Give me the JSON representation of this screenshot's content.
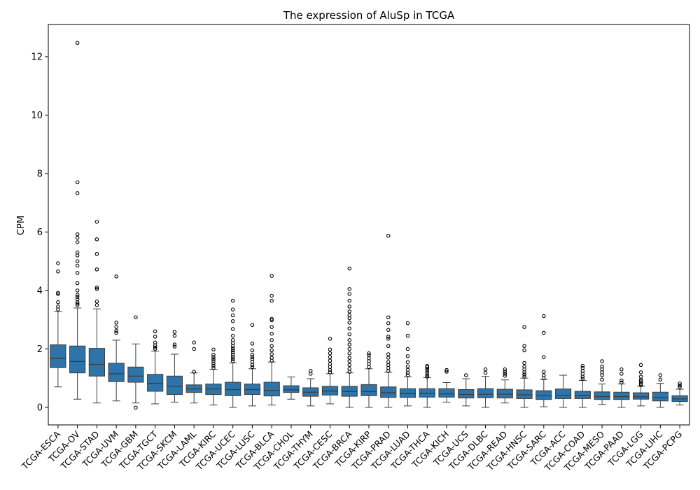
{
  "chart_data": {
    "type": "box",
    "title": "The expression of AluSp in TCGA",
    "xlabel": "",
    "ylabel": "CPM",
    "ylim": [
      -0.6,
      13.1
    ],
    "yticks": [
      0,
      2,
      4,
      6,
      8,
      10,
      12
    ],
    "grid": false,
    "box_color": "#2e74a9",
    "categories": [
      "TCGA-ESCA",
      "TCGA-OV",
      "TCGA-STAD",
      "TCGA-UVM",
      "TCGA-GBM",
      "TCGA-TGCT",
      "TCGA-SKCM",
      "TCGA-LAML",
      "TCGA-KIRC",
      "TCGA-UCEC",
      "TCGA-LUSC",
      "TCGA-BLCA",
      "TCGA-CHOL",
      "TCGA-THYM",
      "TCGA-CESC",
      "TCGA-BRCA",
      "TCGA-KIRP",
      "TCGA-PRAD",
      "TCGA-LUAD",
      "TCGA-THCA",
      "TCGA-KICH",
      "TCGA-UCS",
      "TCGA-DLBC",
      "TCGA-READ",
      "TCGA-HNSC",
      "TCGA-SARC",
      "TCGA-ACC",
      "TCGA-COAD",
      "TCGA-MESO",
      "TCGA-PAAD",
      "TCGA-LGG",
      "TCGA-LIHC",
      "TCGA-PCPG"
    ],
    "boxes": [
      {
        "whislo": 0.7,
        "q1": 1.36,
        "med": 1.68,
        "q3": 2.14,
        "whishi": 3.27,
        "fliers": [
          3.35,
          3.45,
          3.6,
          3.88,
          3.92,
          4.65,
          4.93
        ]
      },
      {
        "whislo": 0.28,
        "q1": 1.18,
        "med": 1.57,
        "q3": 2.1,
        "whishi": 3.4,
        "fliers": [
          3.5,
          3.55,
          3.6,
          3.7,
          3.78,
          3.85,
          4.0,
          4.25,
          4.6,
          4.85,
          5.0,
          5.2,
          5.3,
          5.65,
          5.8,
          5.92,
          7.33,
          7.7,
          12.47
        ]
      },
      {
        "whislo": 0.15,
        "q1": 1.07,
        "med": 1.47,
        "q3": 2.02,
        "whishi": 3.37,
        "fliers": [
          3.5,
          3.62,
          4.05,
          4.1,
          4.72,
          5.25,
          5.75,
          6.35
        ]
      },
      {
        "whislo": 0.22,
        "q1": 0.88,
        "med": 1.15,
        "q3": 1.51,
        "whishi": 2.3,
        "fliers": [
          2.55,
          2.62,
          2.75,
          2.9,
          4.48
        ]
      },
      {
        "whislo": 0.15,
        "q1": 0.86,
        "med": 1.07,
        "q3": 1.38,
        "whishi": 2.17,
        "fliers": [
          -0.01,
          3.08
        ]
      },
      {
        "whislo": 0.12,
        "q1": 0.55,
        "med": 0.82,
        "q3": 1.13,
        "whishi": 1.92,
        "fliers": [
          2.0,
          2.05,
          2.12,
          2.22,
          2.42,
          2.6
        ]
      },
      {
        "whislo": 0.18,
        "q1": 0.44,
        "med": 0.72,
        "q3": 1.07,
        "whishi": 1.82,
        "fliers": [
          2.08,
          2.15,
          2.45,
          2.58
        ]
      },
      {
        "whislo": 0.15,
        "q1": 0.51,
        "med": 0.63,
        "q3": 0.77,
        "whishi": 1.18,
        "fliers": [
          1.22,
          2.0,
          2.22
        ]
      },
      {
        "whislo": 0.08,
        "q1": 0.44,
        "med": 0.63,
        "q3": 0.8,
        "whishi": 1.3,
        "fliers": [
          1.35,
          1.42,
          1.5,
          1.58,
          1.65,
          1.72,
          1.8,
          1.98
        ]
      },
      {
        "whislo": 0.0,
        "q1": 0.4,
        "med": 0.61,
        "q3": 0.86,
        "whishi": 1.52,
        "fliers": [
          1.58,
          1.65,
          1.72,
          1.8,
          1.88,
          1.95,
          2.02,
          2.1,
          2.2,
          2.3,
          2.45,
          2.68,
          2.95,
          3.15,
          3.35,
          3.65
        ]
      },
      {
        "whislo": 0.05,
        "q1": 0.44,
        "med": 0.61,
        "q3": 0.8,
        "whishi": 1.32,
        "fliers": [
          1.38,
          1.45,
          1.55,
          1.65,
          1.72,
          1.8,
          1.95,
          2.18,
          2.82
        ]
      },
      {
        "whislo": 0.08,
        "q1": 0.39,
        "med": 0.58,
        "q3": 0.86,
        "whishi": 1.55,
        "fliers": [
          1.6,
          1.7,
          1.82,
          1.95,
          2.1,
          2.3,
          2.52,
          2.75,
          2.98,
          3.03,
          3.65,
          3.82,
          4.5
        ]
      },
      {
        "whislo": 0.28,
        "q1": 0.51,
        "med": 0.6,
        "q3": 0.74,
        "whishi": 1.04,
        "fliers": []
      },
      {
        "whislo": 0.05,
        "q1": 0.38,
        "med": 0.52,
        "q3": 0.67,
        "whishi": 0.98,
        "fliers": [
          1.15,
          1.25
        ]
      },
      {
        "whislo": 0.12,
        "q1": 0.42,
        "med": 0.56,
        "q3": 0.72,
        "whishi": 1.15,
        "fliers": [
          1.2,
          1.28,
          1.38,
          1.48,
          1.6,
          1.72,
          1.85,
          1.98,
          2.35
        ]
      },
      {
        "whislo": 0.0,
        "q1": 0.38,
        "med": 0.54,
        "q3": 0.72,
        "whishi": 1.18,
        "fliers": [
          1.22,
          1.32,
          1.45,
          1.58,
          1.7,
          1.85,
          2.0,
          2.15,
          2.3,
          2.5,
          2.7,
          2.9,
          3.05,
          3.15,
          3.28,
          3.45,
          3.65,
          3.88,
          4.05,
          4.75
        ]
      },
      {
        "whislo": 0.0,
        "q1": 0.4,
        "med": 0.54,
        "q3": 0.78,
        "whishi": 1.32,
        "fliers": [
          1.38,
          1.48,
          1.58,
          1.68,
          1.78,
          1.85
        ]
      },
      {
        "whislo": 0.0,
        "q1": 0.34,
        "med": 0.5,
        "q3": 0.7,
        "whishi": 1.2,
        "fliers": [
          1.25,
          1.35,
          1.45,
          1.55,
          1.7,
          1.82,
          2.1,
          2.35,
          2.42,
          2.65,
          2.88,
          3.08,
          5.87
        ]
      },
      {
        "whislo": 0.05,
        "q1": 0.34,
        "med": 0.47,
        "q3": 0.64,
        "whishi": 1.05,
        "fliers": [
          1.1,
          1.18,
          1.28,
          1.4,
          1.55,
          1.75,
          2.0,
          2.45,
          2.88
        ]
      },
      {
        "whislo": 0.0,
        "q1": 0.35,
        "med": 0.48,
        "q3": 0.64,
        "whishi": 1.02,
        "fliers": [
          1.05,
          1.1,
          1.18,
          1.25,
          1.32,
          1.38,
          1.42
        ]
      },
      {
        "whislo": 0.18,
        "q1": 0.35,
        "med": 0.46,
        "q3": 0.64,
        "whishi": 0.85,
        "fliers": [
          1.22,
          1.28
        ]
      },
      {
        "whislo": 0.05,
        "q1": 0.32,
        "med": 0.44,
        "q3": 0.61,
        "whishi": 0.98,
        "fliers": [
          1.1
        ]
      },
      {
        "whislo": 0.0,
        "q1": 0.33,
        "med": 0.45,
        "q3": 0.64,
        "whishi": 1.06,
        "fliers": [
          1.18,
          1.3
        ]
      },
      {
        "whislo": 0.15,
        "q1": 0.32,
        "med": 0.45,
        "q3": 0.62,
        "whishi": 0.94,
        "fliers": [
          1.08,
          1.15,
          1.22,
          1.3
        ]
      },
      {
        "whislo": 0.0,
        "q1": 0.3,
        "med": 0.43,
        "q3": 0.6,
        "whishi": 1.0,
        "fliers": [
          1.05,
          1.12,
          1.2,
          1.3,
          1.4,
          1.52,
          1.95,
          2.1,
          2.75
        ]
      },
      {
        "whislo": 0.02,
        "q1": 0.27,
        "med": 0.4,
        "q3": 0.57,
        "whishi": 0.95,
        "fliers": [
          1.0,
          1.1,
          1.22,
          1.72,
          2.55,
          3.12
        ]
      },
      {
        "whislo": 0.0,
        "q1": 0.3,
        "med": 0.4,
        "q3": 0.63,
        "whishi": 1.1,
        "fliers": []
      },
      {
        "whislo": 0.0,
        "q1": 0.3,
        "med": 0.4,
        "q3": 0.55,
        "whishi": 0.92,
        "fliers": [
          0.98,
          1.05,
          1.15,
          1.25,
          1.35,
          1.42
        ]
      },
      {
        "whislo": 0.1,
        "q1": 0.27,
        "med": 0.37,
        "q3": 0.53,
        "whishi": 0.8,
        "fliers": [
          0.95,
          1.1,
          1.2,
          1.3,
          1.4,
          1.58
        ]
      },
      {
        "whislo": 0.0,
        "q1": 0.27,
        "med": 0.37,
        "q3": 0.52,
        "whishi": 0.8,
        "fliers": [
          0.85,
          0.92,
          1.15,
          1.3
        ]
      },
      {
        "whislo": 0.05,
        "q1": 0.28,
        "med": 0.36,
        "q3": 0.5,
        "whishi": 0.72,
        "fliers": [
          0.76,
          0.8,
          0.85,
          0.9,
          0.95,
          1.05,
          1.2,
          1.45
        ]
      },
      {
        "whislo": 0.0,
        "q1": 0.22,
        "med": 0.34,
        "q3": 0.52,
        "whishi": 0.82,
        "fliers": [
          0.95,
          1.1
        ]
      },
      {
        "whislo": 0.08,
        "q1": 0.2,
        "med": 0.29,
        "q3": 0.4,
        "whishi": 0.62,
        "fliers": [
          0.7,
          0.75,
          0.82
        ]
      }
    ]
  }
}
